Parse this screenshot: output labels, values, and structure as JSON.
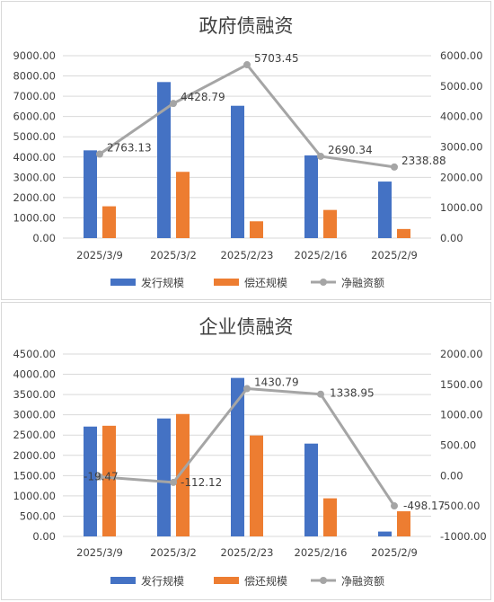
{
  "colors": {
    "issue": "#4472C4",
    "repay": "#ED7D31",
    "net": "#A5A5A5"
  },
  "chart_data": [
    {
      "type": "bar",
      "title": "政府债融资",
      "categories": [
        "2025/3/9",
        "2025/3/2",
        "2025/2/23",
        "2025/2/16",
        "2025/2/9"
      ],
      "series": [
        {
          "name": "发行规模",
          "type": "bar",
          "axis": "left",
          "values": [
            4330,
            7700,
            6530,
            4080,
            2790
          ]
        },
        {
          "name": "偿还规模",
          "type": "bar",
          "axis": "left",
          "values": [
            1570,
            3270,
            830,
            1390,
            450
          ]
        },
        {
          "name": "净融资额",
          "type": "line",
          "axis": "right",
          "values": [
            2763.13,
            4428.79,
            5703.45,
            2690.34,
            2338.88
          ],
          "labels": [
            "2763.13",
            "4428.79",
            "5703.45",
            "2690.34",
            "2338.88"
          ]
        }
      ],
      "ylim_left": [
        0,
        9000
      ],
      "ytick_step_left": 1000,
      "ylim_right": [
        0,
        6000
      ],
      "ytick_step_right": 1000,
      "legend": "bottom",
      "grid": true
    },
    {
      "type": "bar",
      "title": "企业债融资",
      "categories": [
        "2025/3/9",
        "2025/3/2",
        "2025/2/23",
        "2025/2/16",
        "2025/2/9"
      ],
      "series": [
        {
          "name": "发行规模",
          "type": "bar",
          "axis": "left",
          "values": [
            2710,
            2910,
            3910,
            2290,
            120
          ]
        },
        {
          "name": "偿还规模",
          "type": "bar",
          "axis": "left",
          "values": [
            2730,
            3020,
            2490,
            940,
            620
          ]
        },
        {
          "name": "净融资额",
          "type": "line",
          "axis": "right",
          "values": [
            -19.47,
            -112.12,
            1430.79,
            1338.95,
            -498.17
          ],
          "labels": [
            "-19.47",
            "-112.12",
            "1430.79",
            "1338.95",
            "-498.17"
          ]
        }
      ],
      "ylim_left": [
        0,
        4500
      ],
      "ytick_step_left": 500,
      "ylim_right": [
        -1000,
        2000
      ],
      "ytick_step_right": 500,
      "legend": "bottom",
      "grid": true
    }
  ]
}
